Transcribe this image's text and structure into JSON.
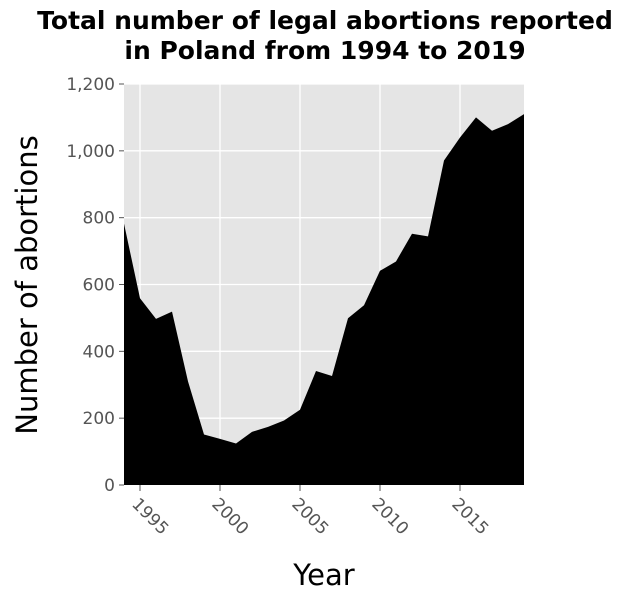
{
  "chart_data": {
    "type": "area",
    "title": "Total number of legal abortions reported in Poland from 1994 to 2019",
    "title_lines": [
      "Total number of legal abortions reported",
      "in Poland from 1994 to 2019"
    ],
    "xlabel": "Year",
    "ylabel": "Number of abortions",
    "xlim": [
      1994,
      2019
    ],
    "ylim": [
      0,
      1200
    ],
    "x_ticks": [
      1995,
      2000,
      2005,
      2010,
      2015
    ],
    "y_ticks": [
      0,
      200,
      400,
      600,
      800,
      1000,
      1200
    ],
    "y_tick_labels": [
      "0",
      "200",
      "400",
      "600",
      "800",
      "1,000",
      "1,200"
    ],
    "grid": true,
    "colors": {
      "fill": "#000000",
      "plot_background": "#e5e5e5",
      "grid": "#ffffff"
    },
    "x": [
      1994,
      1995,
      1996,
      1997,
      1998,
      1999,
      2000,
      2001,
      2002,
      2003,
      2004,
      2005,
      2006,
      2007,
      2008,
      2009,
      2010,
      2011,
      2012,
      2013,
      2014,
      2015,
      2016,
      2017,
      2018,
      2019
    ],
    "values": [
      782,
      559,
      497,
      519,
      310,
      151,
      138,
      124,
      159,
      174,
      193,
      225,
      341,
      326,
      499,
      538,
      641,
      669,
      752,
      744,
      971,
      1040,
      1100,
      1060,
      1080,
      1110
    ]
  }
}
